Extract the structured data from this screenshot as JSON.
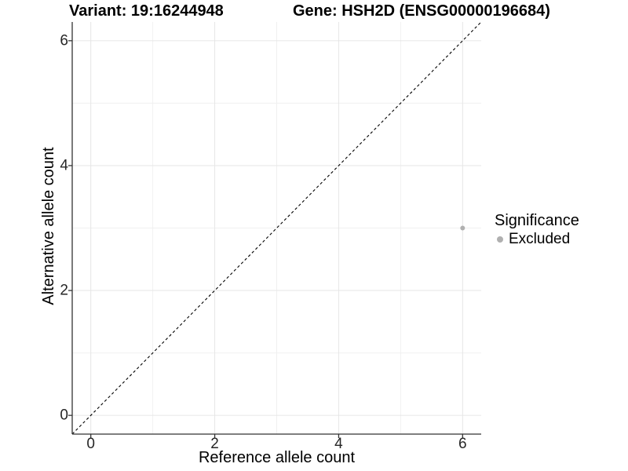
{
  "header": {
    "variant_title": "Variant: 19:16244948",
    "gene_title": "Gene: HSH2D (ENSG00000196684)"
  },
  "legend": {
    "title": "Significance",
    "items": [
      {
        "label": "Excluded",
        "color": "#b0b0b0"
      }
    ]
  },
  "chart_data": {
    "type": "scatter",
    "title_left": "Variant: 19:16244948",
    "title_right": "Gene: HSH2D (ENSG00000196684)",
    "xlabel": "Reference allele count",
    "ylabel": "Alternative allele count",
    "xlim": [
      -0.3,
      6.3
    ],
    "ylim": [
      -0.3,
      6.3
    ],
    "x_major_ticks": [
      0,
      2,
      4,
      6
    ],
    "y_major_ticks": [
      0,
      2,
      4,
      6
    ],
    "x_minor_gridlines": [
      1,
      3,
      5
    ],
    "y_minor_gridlines": [
      1,
      3,
      5
    ],
    "grid": "major+minor",
    "legend_position": "right",
    "series": [
      {
        "name": "Excluded",
        "color": "#b0b0b0",
        "points": [
          {
            "x": 6,
            "y": 3
          }
        ]
      }
    ],
    "reference_line": {
      "type": "identity y=x",
      "style": "dashed",
      "color": "#000000"
    },
    "colors": {
      "background": "#ffffff",
      "axis_line": "#333333",
      "tick_text": "#262626",
      "grid_major": "#e6e6e6",
      "grid_minor": "#f0f0f0"
    }
  }
}
